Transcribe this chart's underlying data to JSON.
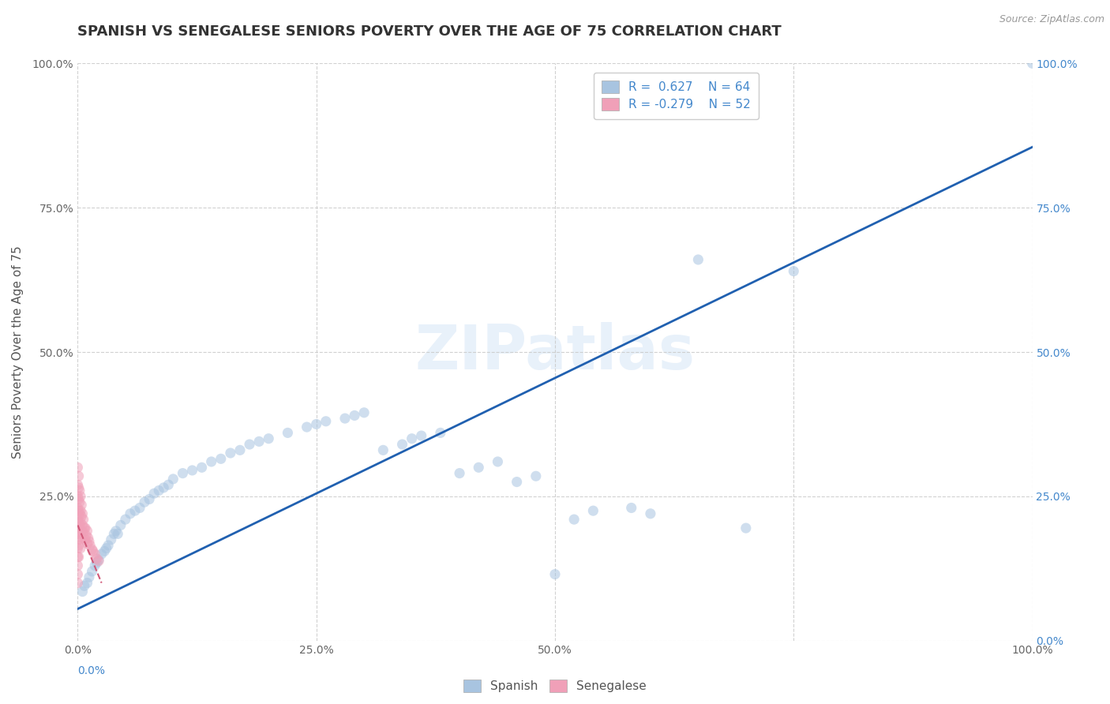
{
  "title": "SPANISH VS SENEGALESE SENIORS POVERTY OVER THE AGE OF 75 CORRELATION CHART",
  "source": "Source: ZipAtlas.com",
  "ylabel": "Seniors Poverty Over the Age of 75",
  "background_color": "#ffffff",
  "watermark": "ZIPatlas",
  "spanish_color": "#a8c4e0",
  "senegalese_color": "#f0a0b8",
  "trend_spanish_color": "#2060b0",
  "trend_senegalese_color": "#d05878",
  "xlim": [
    0.0,
    1.0
  ],
  "ylim": [
    0.0,
    1.0
  ],
  "tick_color_blue": "#4488cc",
  "tick_color_gray": "#666666",
  "title_fontsize": 13,
  "axis_label_fontsize": 11,
  "tick_fontsize": 10,
  "marker_size": 90,
  "marker_alpha": 0.55,
  "grid_color": "#cccccc",
  "sp_x": [
    0.005,
    0.007,
    0.01,
    0.012,
    0.015,
    0.018,
    0.02,
    0.022,
    0.025,
    0.028,
    0.03,
    0.032,
    0.035,
    0.038,
    0.04,
    0.042,
    0.045,
    0.05,
    0.055,
    0.06,
    0.065,
    0.07,
    0.075,
    0.08,
    0.085,
    0.09,
    0.095,
    0.1,
    0.11,
    0.12,
    0.13,
    0.14,
    0.15,
    0.16,
    0.17,
    0.18,
    0.19,
    0.2,
    0.22,
    0.24,
    0.25,
    0.26,
    0.28,
    0.29,
    0.3,
    0.32,
    0.34,
    0.35,
    0.36,
    0.38,
    0.4,
    0.42,
    0.44,
    0.46,
    0.48,
    0.5,
    0.52,
    0.54,
    0.58,
    0.6,
    0.65,
    0.7,
    0.75,
    1.0
  ],
  "sp_y": [
    0.085,
    0.095,
    0.1,
    0.11,
    0.12,
    0.13,
    0.135,
    0.14,
    0.15,
    0.155,
    0.16,
    0.165,
    0.175,
    0.185,
    0.19,
    0.185,
    0.2,
    0.21,
    0.22,
    0.225,
    0.23,
    0.24,
    0.245,
    0.255,
    0.26,
    0.265,
    0.27,
    0.28,
    0.29,
    0.295,
    0.3,
    0.31,
    0.315,
    0.325,
    0.33,
    0.34,
    0.345,
    0.35,
    0.36,
    0.37,
    0.375,
    0.38,
    0.385,
    0.39,
    0.395,
    0.33,
    0.34,
    0.35,
    0.355,
    0.36,
    0.29,
    0.3,
    0.31,
    0.275,
    0.285,
    0.115,
    0.21,
    0.225,
    0.23,
    0.22,
    0.66,
    0.195,
    0.64,
    1.0
  ],
  "sn_x": [
    0.0,
    0.0,
    0.0,
    0.0,
    0.0,
    0.0,
    0.0,
    0.0,
    0.0,
    0.0,
    0.0,
    0.0,
    0.001,
    0.001,
    0.001,
    0.001,
    0.001,
    0.001,
    0.001,
    0.001,
    0.002,
    0.002,
    0.002,
    0.002,
    0.002,
    0.003,
    0.003,
    0.003,
    0.003,
    0.003,
    0.004,
    0.004,
    0.004,
    0.005,
    0.005,
    0.005,
    0.006,
    0.006,
    0.007,
    0.008,
    0.008,
    0.009,
    0.01,
    0.01,
    0.011,
    0.012,
    0.013,
    0.015,
    0.016,
    0.018,
    0.02,
    0.022
  ],
  "sn_y": [
    0.3,
    0.27,
    0.25,
    0.23,
    0.21,
    0.195,
    0.175,
    0.16,
    0.145,
    0.13,
    0.115,
    0.1,
    0.285,
    0.265,
    0.245,
    0.225,
    0.205,
    0.185,
    0.165,
    0.145,
    0.26,
    0.24,
    0.22,
    0.2,
    0.175,
    0.25,
    0.225,
    0.205,
    0.185,
    0.16,
    0.235,
    0.215,
    0.19,
    0.22,
    0.2,
    0.178,
    0.21,
    0.188,
    0.195,
    0.195,
    0.175,
    0.182,
    0.19,
    0.168,
    0.178,
    0.172,
    0.165,
    0.158,
    0.155,
    0.15,
    0.142,
    0.138
  ],
  "sp_trend_x0": 0.0,
  "sp_trend_y0": 0.055,
  "sp_trend_x1": 1.0,
  "sp_trend_y1": 0.855,
  "sn_trend_x0": 0.0,
  "sn_trend_y0": 0.2,
  "sn_trend_x1": 0.025,
  "sn_trend_y1": 0.1
}
